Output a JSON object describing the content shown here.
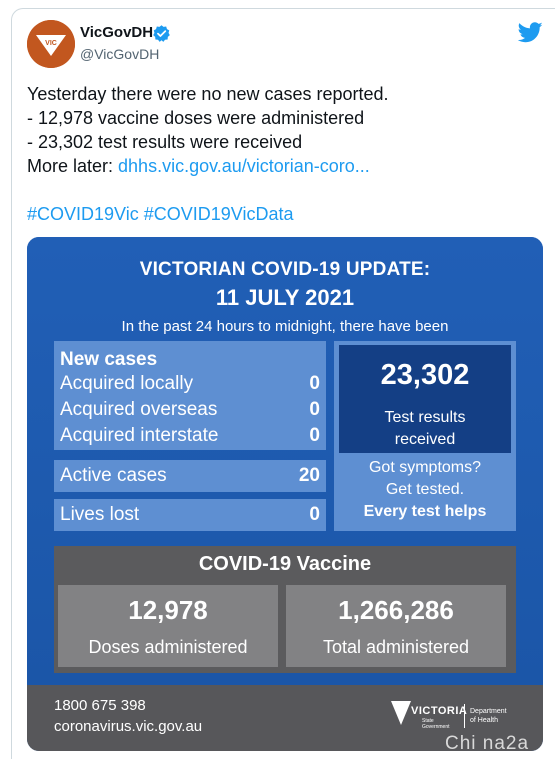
{
  "account": {
    "display_name": "VicGovDH",
    "handle": "@VicGovDH",
    "avatar_text": "VIC",
    "brand_color": "#c2571f",
    "verified_color": "#1d9bf0"
  },
  "tweet": {
    "lines": [
      "Yesterday there were no new cases reported.",
      "- 12,978 vaccine doses were administered",
      "- 23,302 test results were received"
    ],
    "more_prefix": "More later: ",
    "link_text": "dhhs.vic.gov.au/victorian-coro...",
    "hashtags": [
      "#COVID19Vic",
      "#COVID19VicData"
    ]
  },
  "infographic": {
    "title": "VICTORIAN COVID-19 UPDATE:",
    "date": "11 JULY 2021",
    "subtitle": "In the past 24 hours to midnight, there have been",
    "new_cases": {
      "heading": "New cases",
      "rows": [
        {
          "label": "Acquired locally",
          "value": "0"
        },
        {
          "label": "Acquired overseas",
          "value": "0"
        },
        {
          "label": "Acquired interstate",
          "value": "0"
        }
      ]
    },
    "active_cases": {
      "label": "Active cases",
      "value": "20"
    },
    "lives_lost": {
      "label": "Lives lost",
      "value": "0"
    },
    "tests": {
      "value": "23,302",
      "label_line1": "Test results",
      "label_line2": "received"
    },
    "symptoms": {
      "line1": "Got symptoms?",
      "line2": "Get tested.",
      "line3": "Every test helps"
    },
    "vaccine": {
      "title": "COVID-19 Vaccine",
      "doses": {
        "value": "12,978",
        "label": "Doses administered"
      },
      "total": {
        "value": "1,266,286",
        "label": "Total administered"
      }
    },
    "footer": {
      "phone": "1800 675 398",
      "url": "coronavirus.vic.gov.au",
      "logo_word": "VICTORIA",
      "logo_sub1": "State",
      "logo_sub2": "Government",
      "dept_line1": "Department",
      "dept_line2": "of Health"
    }
  },
  "watermark": "Chi na2a"
}
